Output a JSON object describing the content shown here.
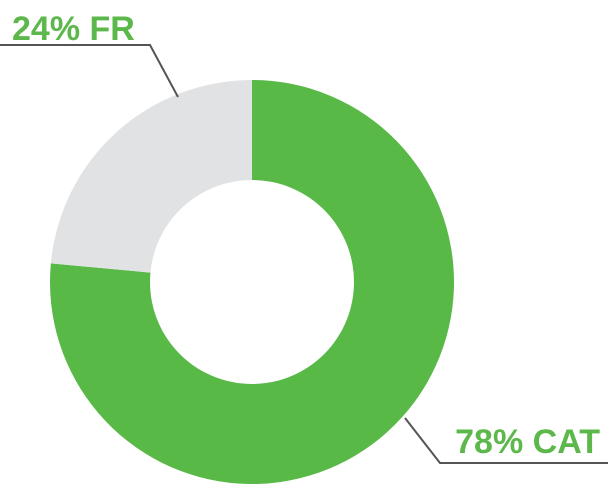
{
  "chart_data": {
    "type": "donut",
    "values": [
      24,
      78
    ],
    "value_labels": [
      "24% FR",
      "78% CAT"
    ],
    "colors": [
      "#e1e2e3",
      "#58b947"
    ],
    "label_color": "#5cb84a"
  }
}
